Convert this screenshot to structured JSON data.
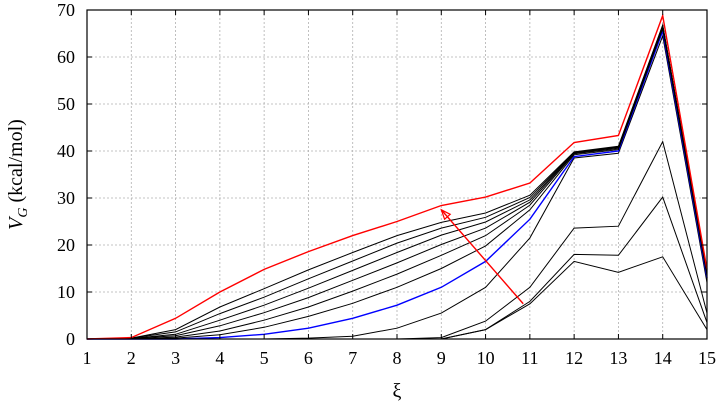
{
  "chart_data": {
    "type": "line",
    "xlabel": "ξ",
    "ylabel_main": "V",
    "ylabel_sub": "G",
    "ylabel_rest": " (kcal/mol)",
    "xlim": [
      1,
      15
    ],
    "ylim": [
      0,
      70
    ],
    "xticks": [
      1,
      2,
      3,
      4,
      5,
      6,
      7,
      8,
      9,
      10,
      11,
      12,
      13,
      14,
      15
    ],
    "yticks": [
      0,
      10,
      20,
      30,
      40,
      50,
      60,
      70
    ],
    "grid": true,
    "x": [
      1,
      2,
      3,
      4,
      5,
      6,
      7,
      8,
      9,
      10,
      11,
      12,
      13,
      14,
      15
    ],
    "series": [
      {
        "color": "#000000",
        "values": [
          0,
          0,
          0,
          0,
          0,
          0,
          0,
          0,
          0,
          2.0,
          7.5,
          16.5,
          14.2,
          17.5,
          2.0
        ]
      },
      {
        "color": "#000000",
        "values": [
          0,
          0,
          0,
          0,
          0,
          0,
          0,
          0,
          0,
          2.0,
          8.0,
          18.0,
          17.8,
          30.2,
          3.5
        ]
      },
      {
        "color": "#000000",
        "values": [
          0,
          0,
          0,
          0,
          0,
          0,
          0,
          0,
          0.3,
          3.8,
          11.0,
          23.6,
          24.0,
          42.0,
          5.5
        ]
      },
      {
        "color": "#000000",
        "values": [
          0,
          0,
          0,
          0,
          0,
          0.2,
          0.6,
          2.3,
          5.5,
          11.0,
          21.5,
          38.5,
          39.5,
          64.5,
          12.0
        ]
      },
      {
        "color": "#0000ff",
        "values": [
          0,
          0,
          0,
          0.3,
          1.0,
          2.3,
          4.4,
          7.2,
          11.0,
          16.5,
          25.5,
          38.8,
          40.0,
          65.5,
          13.0
        ]
      },
      {
        "color": "#000000",
        "values": [
          0,
          0,
          0.2,
          0.9,
          2.5,
          4.8,
          7.6,
          11.0,
          15.0,
          19.8,
          27.5,
          39.2,
          40.3,
          66.0,
          13.5
        ]
      },
      {
        "color": "#000000",
        "values": [
          0,
          0,
          0.4,
          1.7,
          4.0,
          6.8,
          10.2,
          13.8,
          17.8,
          22.0,
          28.5,
          39.4,
          40.5,
          66.3,
          13.8
        ]
      },
      {
        "color": "#000000",
        "values": [
          0,
          0.1,
          0.7,
          2.8,
          5.6,
          8.8,
          12.5,
          16.2,
          20.1,
          23.6,
          29.1,
          39.5,
          40.7,
          66.5,
          14.0
        ]
      },
      {
        "color": "#000000",
        "values": [
          0,
          0.1,
          1.0,
          4.0,
          7.2,
          10.8,
          14.6,
          18.4,
          22.1,
          24.9,
          29.6,
          39.6,
          40.8,
          66.6,
          14.1
        ]
      },
      {
        "color": "#000000",
        "values": [
          0,
          0.2,
          1.5,
          5.4,
          8.9,
          12.8,
          16.6,
          20.4,
          23.6,
          25.9,
          30.1,
          39.7,
          40.9,
          66.7,
          14.2
        ]
      },
      {
        "color": "#000000",
        "values": [
          0,
          0.2,
          2.0,
          6.8,
          10.7,
          14.7,
          18.4,
          22.0,
          24.8,
          26.8,
          30.6,
          39.8,
          41.0,
          66.8,
          14.3
        ]
      },
      {
        "color": "#ff0000",
        "values": [
          0,
          0.3,
          4.4,
          10.0,
          14.8,
          18.6,
          22.0,
          25.0,
          28.4,
          30.2,
          33.2,
          41.8,
          43.3,
          68.8,
          14.8
        ]
      }
    ],
    "arrow": {
      "from": [
        10.85,
        7.5
      ],
      "to": [
        9.0,
        27.5
      ],
      "color": "#ff0000"
    }
  }
}
